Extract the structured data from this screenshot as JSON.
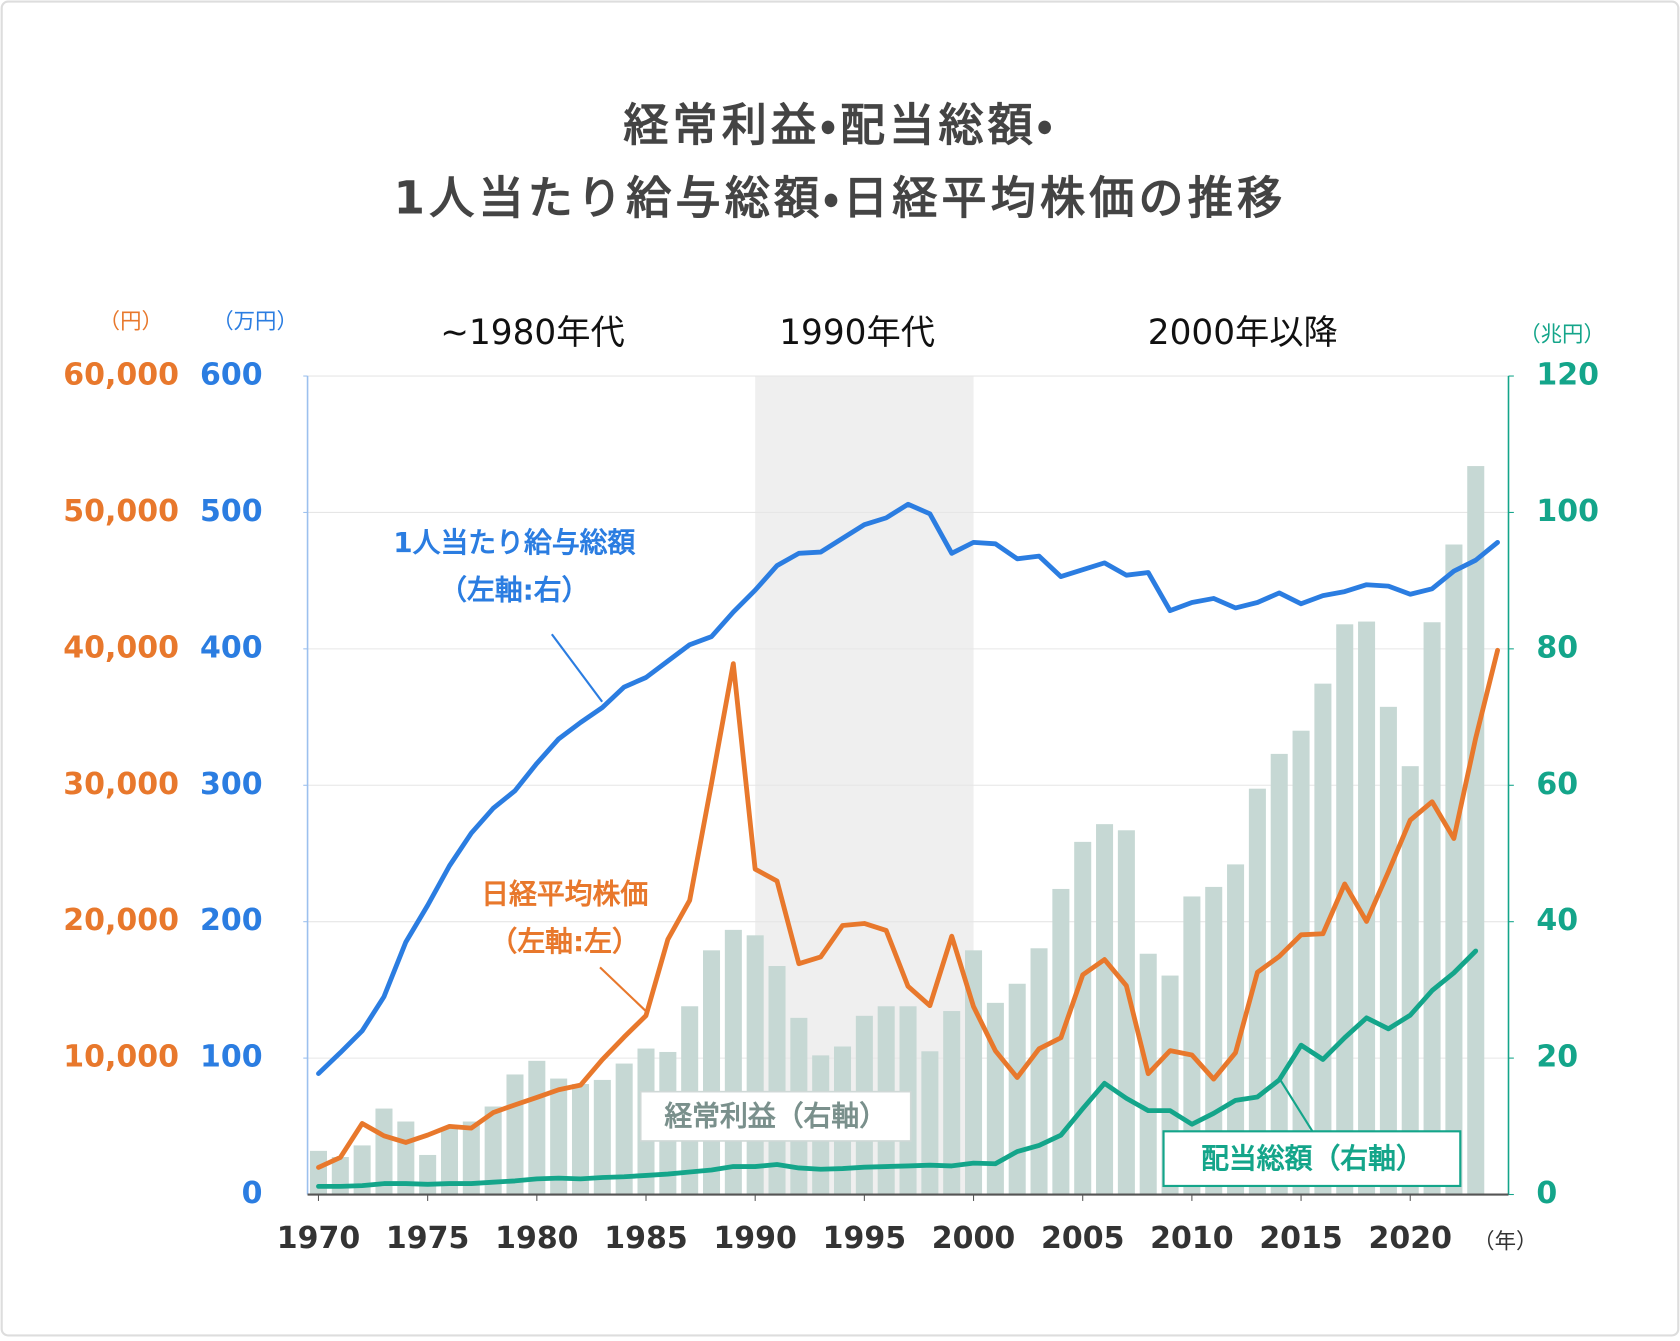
{
  "chart_data": {
    "type": "combo",
    "title": [
      "経常利益・配当総額・",
      "1人当たり給与総額・日経平均株価の推移"
    ],
    "periods": [
      "~1980年代",
      "1990年代",
      "2000年以降"
    ],
    "highlight_range": [
      1990,
      2000
    ],
    "x": [
      1970,
      1971,
      1972,
      1973,
      1974,
      1975,
      1976,
      1977,
      1978,
      1979,
      1980,
      1981,
      1982,
      1983,
      1984,
      1985,
      1986,
      1987,
      1988,
      1989,
      1990,
      1991,
      1992,
      1993,
      1994,
      1995,
      1996,
      1997,
      1998,
      1999,
      2000,
      2001,
      2002,
      2003,
      2004,
      2005,
      2006,
      2007,
      2008,
      2009,
      2010,
      2011,
      2012,
      2013,
      2014,
      2015,
      2016,
      2017,
      2018,
      2019,
      2020,
      2021,
      2022,
      2023,
      2024
    ],
    "xlim": [
      1969.5,
      2024.5
    ],
    "xticks": [
      1970,
      1975,
      1980,
      1985,
      1990,
      1995,
      2000,
      2005,
      2010,
      2015,
      2020
    ],
    "x_unit": "（年）",
    "ylim": [
      0,
      60000
    ],
    "yticks": [
      {
        "value": 10000,
        "label": "10,000"
      },
      {
        "value": 20000,
        "label": "20,000"
      },
      {
        "value": 30000,
        "label": "30,000"
      },
      {
        "value": 40000,
        "label": "40,000"
      },
      {
        "value": 50000,
        "label": "50,000"
      },
      {
        "value": 60000,
        "label": "60,000"
      }
    ],
    "y_unit": "（円）",
    "y_inner_lim": [
      0,
      600
    ],
    "y_inner_ticks": [
      0,
      100,
      200,
      300,
      400,
      500,
      600
    ],
    "y_inner_unit": "（万円）",
    "y2lim": [
      0,
      120
    ],
    "y2ticks": [
      0,
      20,
      40,
      60,
      80,
      100,
      120
    ],
    "y2_unit": "（兆円）",
    "grid": true,
    "series": [
      {
        "name": "経常利益（右軸）",
        "kind": "bar",
        "axis": "y2",
        "color": "#c6d8d4",
        "values": [
          6.4,
          5.5,
          7.2,
          12.6,
          10.7,
          5.8,
          9.7,
          10.7,
          12.9,
          17.6,
          19.6,
          17.0,
          16.2,
          16.8,
          19.2,
          21.4,
          20.9,
          27.6,
          35.8,
          38.8,
          38.0,
          33.5,
          25.9,
          20.4,
          21.7,
          26.2,
          27.6,
          27.6,
          21.0,
          26.9,
          35.8,
          28.1,
          30.9,
          36.1,
          44.8,
          51.7,
          54.3,
          53.4,
          35.3,
          32.1,
          43.7,
          45.1,
          48.4,
          59.5,
          64.6,
          68.0,
          74.9,
          83.6,
          84.0,
          71.5,
          62.8,
          83.9,
          95.3,
          106.8,
          null
        ]
      },
      {
        "name": "配当総額（右軸）",
        "kind": "line",
        "axis": "y2",
        "color": "#14a58a",
        "values": [
          1.2,
          1.2,
          1.3,
          1.6,
          1.6,
          1.5,
          1.6,
          1.6,
          1.8,
          2.0,
          2.3,
          2.4,
          2.3,
          2.5,
          2.6,
          2.8,
          3.0,
          3.3,
          3.6,
          4.1,
          4.1,
          4.4,
          3.9,
          3.7,
          3.8,
          4.0,
          4.1,
          4.2,
          4.3,
          4.2,
          4.6,
          4.5,
          6.3,
          7.2,
          8.7,
          12.6,
          16.3,
          14.1,
          12.3,
          12.3,
          10.3,
          11.9,
          13.8,
          14.3,
          16.8,
          21.9,
          19.8,
          23.0,
          25.9,
          24.3,
          26.3,
          29.9,
          32.5,
          35.7,
          null
        ]
      },
      {
        "name": "1人当たり給与総額",
        "note": "（左軸:右）",
        "kind": "line",
        "axis": "y_inner",
        "color": "#2b7de1",
        "values": [
          88.7,
          104,
          120,
          145,
          185,
          212,
          241,
          265,
          283,
          296,
          316,
          334,
          346,
          357,
          372,
          379,
          391,
          403,
          409,
          427,
          443,
          461,
          470,
          471,
          481,
          491,
          496,
          506,
          499,
          470,
          478,
          477,
          466,
          468,
          453,
          458,
          463,
          454,
          456,
          428,
          434,
          437,
          430,
          434,
          441,
          433,
          439,
          442,
          447,
          446,
          440,
          444,
          457,
          465,
          478
        ]
      },
      {
        "name": "日経平均株価",
        "note": "（左軸:左）",
        "kind": "line",
        "axis": "y",
        "color": "#e8782c",
        "values": [
          1987,
          2714,
          5208,
          4307,
          3817,
          4359,
          4991,
          4866,
          6002,
          6570,
          7116,
          7682,
          8017,
          9894,
          11543,
          13113,
          18701,
          21564,
          30159,
          38916,
          23849,
          22984,
          16925,
          17417,
          19723,
          19868,
          19361,
          15259,
          13842,
          18934,
          13786,
          10543,
          8579,
          10677,
          11489,
          16111,
          17226,
          15308,
          8860,
          10546,
          10229,
          8455,
          10395,
          16291,
          17451,
          19034,
          19114,
          22765,
          20015,
          23657,
          27444,
          28792,
          26095,
          33464,
          39895
        ]
      }
    ]
  }
}
